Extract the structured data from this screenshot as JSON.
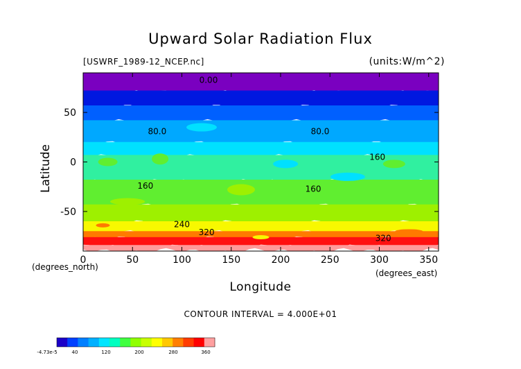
{
  "chart_data": {
    "type": "heatmap",
    "title": "Upward Solar Radiation Flux",
    "file_label": "[USWRF_1989-12_NCEP.nc]",
    "units_label": "(units:W/m^2)",
    "xlabel": "Longitude",
    "ylabel": "Latitude",
    "x_unit_label": "(degrees_east)",
    "y_unit_label": "(degrees_north)",
    "xlim": [
      0,
      360
    ],
    "ylim": [
      -90,
      90
    ],
    "x_ticks": [
      0,
      50,
      100,
      150,
      200,
      250,
      300,
      350
    ],
    "y_ticks": [
      -50,
      0,
      50
    ],
    "contour_interval_text": "CONTOUR INTERVAL = 4.000E+01",
    "contour_labels": [
      {
        "text": "0.00",
        "lon": 127,
        "lat": 80
      },
      {
        "text": "80.0",
        "lon": 75,
        "lat": 28
      },
      {
        "text": "80.0",
        "lon": 240,
        "lat": 28
      },
      {
        "text": "160",
        "lon": 298,
        "lat": 2
      },
      {
        "text": "160",
        "lon": 63,
        "lat": -27
      },
      {
        "text": "160",
        "lon": 233,
        "lat": -30
      },
      {
        "text": "240",
        "lon": 100,
        "lat": -66
      },
      {
        "text": "320",
        "lon": 125,
        "lat": -74
      },
      {
        "text": "320",
        "lon": 304,
        "lat": -80
      }
    ],
    "zonal_bands": [
      {
        "lat_from": 90,
        "lat_to": 70,
        "value": 0
      },
      {
        "lat_from": 70,
        "lat_to": 55,
        "value": 40
      },
      {
        "lat_from": 55,
        "lat_to": 40,
        "value": 60
      },
      {
        "lat_from": 40,
        "lat_to": 18,
        "value": 100
      },
      {
        "lat_from": 18,
        "lat_to": 5,
        "value": 130
      },
      {
        "lat_from": 5,
        "lat_to": -20,
        "value": 150
      },
      {
        "lat_from": -20,
        "lat_to": -45,
        "value": 170
      },
      {
        "lat_from": -45,
        "lat_to": -62,
        "value": 195
      },
      {
        "lat_from": -62,
        "lat_to": -72,
        "value": 250
      },
      {
        "lat_from": -72,
        "lat_to": -78,
        "value": 300
      },
      {
        "lat_from": -78,
        "lat_to": -86,
        "value": 330
      },
      {
        "lat_from": -86,
        "lat_to": -90,
        "value": 370
      }
    ],
    "colorbar": {
      "tick_labels": [
        "-4.73e-5",
        "40",
        "120",
        "200",
        "280",
        "360"
      ],
      "colors": [
        "#1c00c8",
        "#0040ff",
        "#007fff",
        "#00b0ff",
        "#00e5ff",
        "#00ffc0",
        "#40ff40",
        "#90ff00",
        "#c8ff00",
        "#ffff00",
        "#ffc800",
        "#ff7f00",
        "#ff3c00",
        "#ff0000",
        "#ffa0a0"
      ]
    },
    "level_colors": {
      "0": "#7a00c0",
      "40": "#0018e0",
      "60": "#0060ff",
      "100": "#00a8ff",
      "130": "#00e0ff",
      "150": "#30f0a0",
      "170": "#60ee30",
      "195": "#9ef000",
      "250": "#f8f800",
      "300": "#ff7a00",
      "330": "#ff1010",
      "370": "#ff9a9a"
    }
  }
}
